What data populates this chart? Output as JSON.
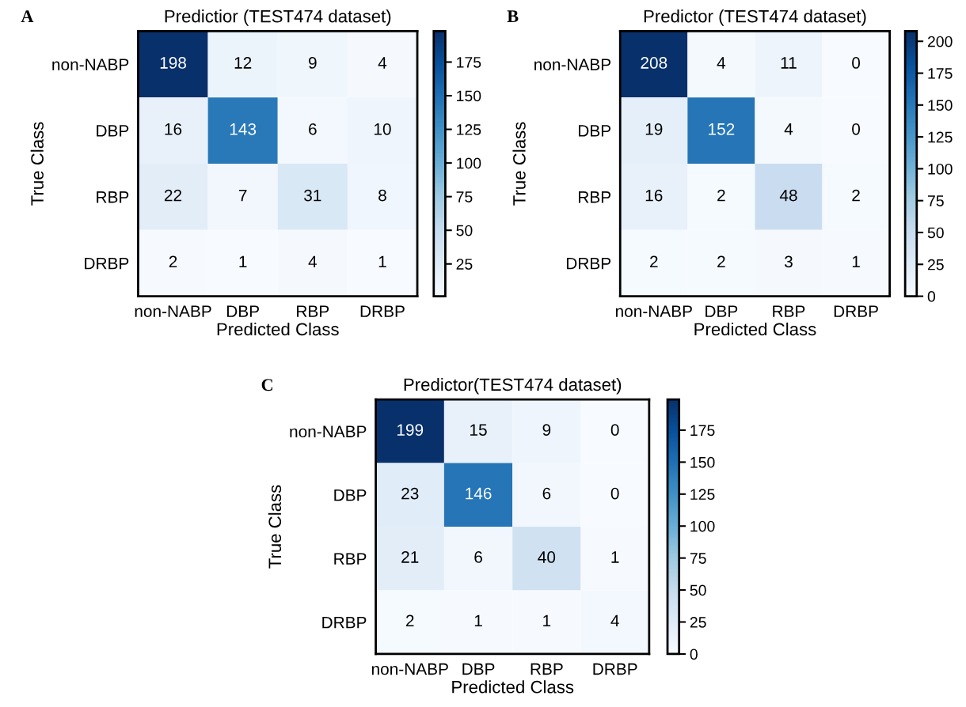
{
  "chart_data": [
    {
      "type": "heatmap",
      "title": "Predictior (TEST474 dataset)",
      "annotations": [
        "A"
      ],
      "xlabel": "Predicted Class",
      "ylabel": "True Class",
      "categories": [
        "non-NABP",
        "DBP",
        "RBP",
        "DRBP"
      ],
      "y_categories": [
        "non-NABP",
        "DBP",
        "RBP",
        "DRBP"
      ],
      "cells": [
        [
          198,
          12,
          9,
          4
        ],
        [
          16,
          143,
          6,
          10
        ],
        [
          22,
          7,
          31,
          8
        ],
        [
          2,
          1,
          4,
          1
        ]
      ],
      "data_labels": true,
      "clim": [
        1,
        198
      ],
      "cticks": [
        25,
        50,
        75,
        100,
        125,
        150,
        175
      ]
    },
    {
      "type": "heatmap",
      "title": "Predictor (TEST474 dataset)",
      "annotations": [
        "B"
      ],
      "xlabel": "Predicted Class",
      "ylabel": "True Class",
      "categories": [
        "non-NABP",
        "DBP",
        "RBP",
        "DRBP"
      ],
      "y_categories": [
        "non-NABP",
        "DBP",
        "RBP",
        "DRBP"
      ],
      "cells": [
        [
          208,
          4,
          11,
          0
        ],
        [
          19,
          152,
          4,
          0
        ],
        [
          16,
          2,
          48,
          2
        ],
        [
          2,
          2,
          3,
          1
        ]
      ],
      "data_labels": true,
      "clim": [
        0,
        208
      ],
      "cticks": [
        0,
        25,
        50,
        75,
        100,
        125,
        150,
        175,
        200
      ]
    },
    {
      "type": "heatmap",
      "title": "Predictor(TEST474 dataset)",
      "annotations": [
        "C"
      ],
      "xlabel": "Predicted Class",
      "ylabel": "True Class",
      "categories": [
        "non-NABP",
        "DBP",
        "RBP",
        "DRBP"
      ],
      "y_categories": [
        "non-NABP",
        "DBP",
        "RBP",
        "DRBP"
      ],
      "cells": [
        [
          199,
          15,
          9,
          0
        ],
        [
          23,
          146,
          6,
          0
        ],
        [
          21,
          6,
          40,
          1
        ],
        [
          2,
          1,
          1,
          4
        ]
      ],
      "data_labels": true,
      "clim": [
        0,
        199
      ],
      "cticks": [
        0,
        25,
        50,
        75,
        100,
        125,
        150,
        175
      ]
    }
  ]
}
